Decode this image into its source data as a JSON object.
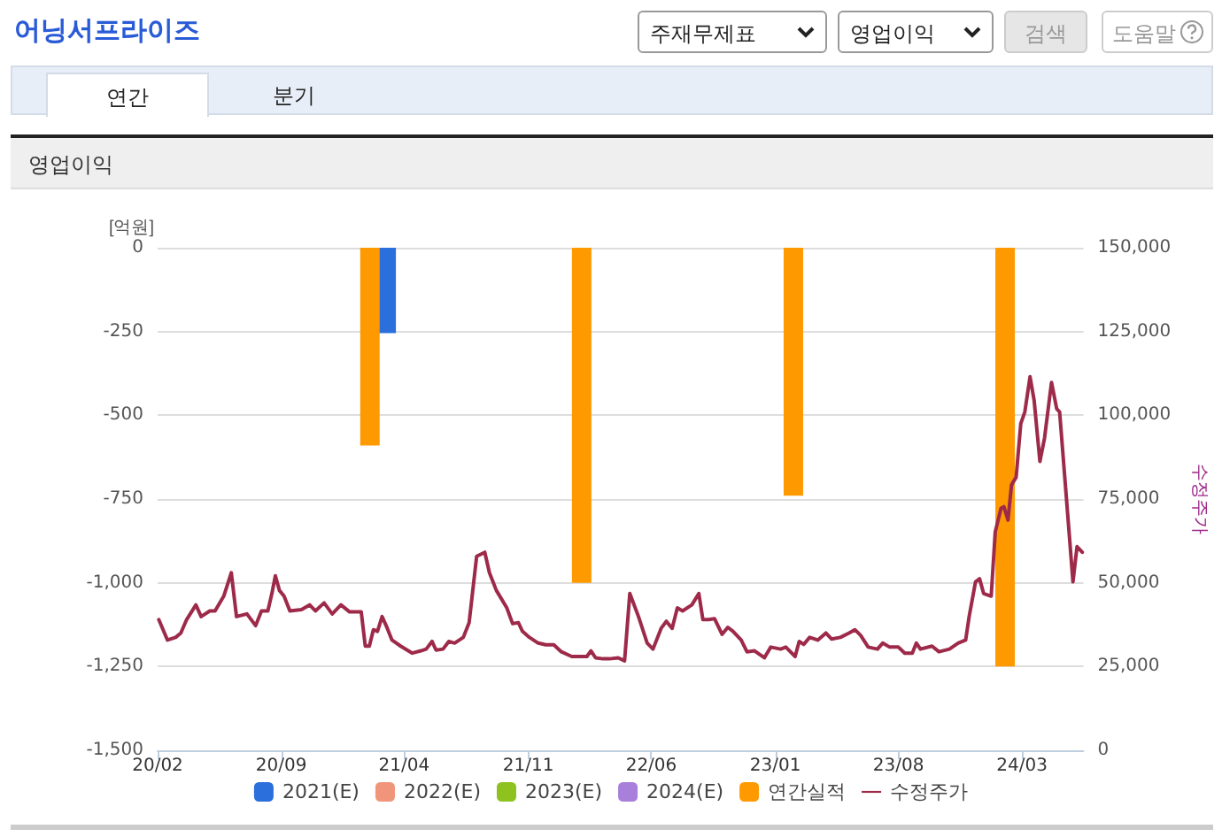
{
  "chart_data": {
    "type": "bar",
    "title": "어닝서프라이즈",
    "subtitle": "영업이익",
    "annotations": [
      "주재무제표",
      "영업이익",
      "검색",
      "도움말",
      "연간",
      "분기"
    ],
    "ylabel": "[억원]",
    "y2label": "수정주가",
    "xlim": [
      "2020-02-01",
      "2024-06-15"
    ],
    "xticks": [
      {
        "value": "2020-02",
        "label": "20/02"
      },
      {
        "value": "2020-09",
        "label": "20/09"
      },
      {
        "value": "2021-04",
        "label": "21/04"
      },
      {
        "value": "2021-11",
        "label": "21/11"
      },
      {
        "value": "2022-06",
        "label": "22/06"
      },
      {
        "value": "2023-01",
        "label": "23/01"
      },
      {
        "value": "2023-08",
        "label": "23/08"
      },
      {
        "value": "2024-03",
        "label": "24/03"
      }
    ],
    "ylim": [
      -1500,
      0
    ],
    "yticks": [
      {
        "value": -1500,
        "label": "-1,500"
      },
      {
        "value": -1250,
        "label": "-1,250"
      },
      {
        "value": -1000,
        "label": "-1,000"
      },
      -750,
      -500,
      -250,
      0
    ],
    "y2lim": [
      0,
      150000
    ],
    "y2ticks": [
      0,
      {
        "value": 25000,
        "label": "25,000"
      },
      {
        "value": 50000,
        "label": "50,000"
      },
      {
        "value": 75000,
        "label": "75,000"
      },
      {
        "value": 100000,
        "label": "100,000"
      },
      {
        "value": 125000,
        "label": "125,000"
      },
      {
        "value": 150000,
        "label": "150,000"
      }
    ],
    "grid": "y",
    "legend": "bottom",
    "marker": "none",
    "series": [
      {
        "name": "2021(E)",
        "color": "#2a6fdb",
        "x": [
          "2021-03-01"
        ],
        "values": [
          -255
        ]
      },
      {
        "name": "2022(E)",
        "color": "#f0957a"
      },
      {
        "name": "2023(E)",
        "color": "#8dc21f"
      },
      {
        "name": "2024(E)",
        "color": "#a97fdc"
      },
      {
        "name": "연간실적",
        "color": "#ff9900",
        "x": [
          "2021-02-01",
          "2022-02-01",
          "2023-02-01",
          "2024-02-01"
        ],
        "values": [
          -590,
          -1000,
          -740,
          -1250
        ]
      },
      {
        "name": "수정주가",
        "type": "line",
        "axis": "y2",
        "color": "#9e2a4a",
        "x": [
          "2020-02-03",
          "2020-02-18",
          "2020-03-03",
          "2020-03-12",
          "2020-03-22",
          "2020-04-07",
          "2020-04-16",
          "2020-05-01",
          "2020-05-10",
          "2020-05-25",
          "2020-06-07",
          "2020-06-16",
          "2020-07-04",
          "2020-07-19",
          "2020-07-29",
          "2020-08-09",
          "2020-08-16",
          "2020-08-22",
          "2020-08-29",
          "2020-09-06",
          "2020-09-16",
          "2020-10-06",
          "2020-10-20",
          "2020-10-30",
          "2020-11-14",
          "2020-11-28",
          "2020-12-13",
          "2020-12-28",
          "2021-01-17",
          "2021-01-24",
          "2021-01-31",
          "2021-02-07",
          "2021-02-14",
          "2021-02-22",
          "2021-03-03",
          "2021-03-11",
          "2021-03-26",
          "2021-04-15",
          "2021-04-30",
          "2021-05-09",
          "2021-05-19",
          "2021-05-26",
          "2021-06-07",
          "2021-06-17",
          "2021-06-27",
          "2021-07-12",
          "2021-07-22",
          "2021-08-04",
          "2021-08-18",
          "2021-08-26",
          "2021-09-07",
          "2021-09-25",
          "2021-10-05",
          "2021-10-15",
          "2021-10-22",
          "2021-11-03",
          "2021-11-18",
          "2021-12-01",
          "2021-12-15",
          "2021-12-28",
          "2022-01-15",
          "2022-02-10",
          "2022-02-17",
          "2022-02-25",
          "2022-03-10",
          "2022-03-21",
          "2022-04-05",
          "2022-04-16",
          "2022-04-25",
          "2022-05-10",
          "2022-05-25",
          "2022-06-04",
          "2022-06-18",
          "2022-06-27",
          "2022-07-07",
          "2022-07-16",
          "2022-07-25",
          "2022-08-10",
          "2022-08-22",
          "2022-08-29",
          "2022-09-08",
          "2022-09-18",
          "2022-10-01",
          "2022-10-11",
          "2022-10-20",
          "2022-11-03",
          "2022-11-13",
          "2022-11-26",
          "2022-12-13",
          "2022-12-24",
          "2023-01-10",
          "2023-01-19",
          "2023-02-04",
          "2023-02-11",
          "2023-02-19",
          "2023-03-01",
          "2023-03-15",
          "2023-03-29",
          "2023-04-08",
          "2023-04-23",
          "2023-05-08",
          "2023-05-18",
          "2023-05-28",
          "2023-06-10",
          "2023-06-26",
          "2023-07-05",
          "2023-07-17",
          "2023-08-01",
          "2023-08-12",
          "2023-08-25",
          "2023-09-01",
          "2023-09-08",
          "2023-09-28",
          "2023-10-10",
          "2023-10-28",
          "2023-11-12",
          "2023-11-25",
          "2023-12-01",
          "2023-12-12",
          "2023-12-19",
          "2023-12-26",
          "2024-01-08",
          "2024-01-15",
          "2024-01-25",
          "2024-01-30",
          "2024-02-06",
          "2024-02-12",
          "2024-02-20",
          "2024-02-28",
          "2024-03-06",
          "2024-03-15",
          "2024-03-22",
          "2024-04-01",
          "2024-04-09",
          "2024-04-21",
          "2024-04-30",
          "2024-05-05",
          "2024-05-28",
          "2024-06-04",
          "2024-06-13"
        ],
        "values": [
          39000,
          32900,
          33700,
          35000,
          39000,
          43400,
          39900,
          41600,
          41600,
          46000,
          53000,
          39900,
          40700,
          37200,
          41600,
          41600,
          46800,
          52100,
          47700,
          46000,
          41600,
          42000,
          43400,
          41600,
          44000,
          40700,
          43400,
          41300,
          41300,
          31100,
          31100,
          36000,
          35500,
          39900,
          36400,
          32900,
          31100,
          29000,
          29700,
          30200,
          32500,
          29900,
          30200,
          32500,
          32000,
          33700,
          38100,
          57900,
          59100,
          53000,
          47700,
          42500,
          37800,
          38100,
          35500,
          33700,
          32000,
          31500,
          31500,
          29400,
          28000,
          28000,
          29700,
          27600,
          27300,
          27300,
          27600,
          26700,
          46800,
          39900,
          32000,
          30200,
          36400,
          38500,
          36400,
          42500,
          41600,
          43400,
          46800,
          39000,
          39000,
          39300,
          34600,
          36700,
          35500,
          32900,
          29400,
          29700,
          27600,
          30800,
          30200,
          30800,
          28000,
          32500,
          31600,
          33700,
          32900,
          35000,
          33200,
          33700,
          35000,
          36000,
          34300,
          30800,
          30200,
          32000,
          30800,
          30800,
          29000,
          29000,
          32000,
          30200,
          31100,
          29400,
          30200,
          32000,
          32900,
          39900,
          50300,
          51200,
          46800,
          46000,
          65200,
          72200,
          72700,
          68700,
          79200,
          81500,
          97500,
          101000,
          111500,
          104500,
          86200,
          93200,
          109800,
          101900,
          101000,
          50300,
          60800,
          59100
        ]
      }
    ]
  }
}
